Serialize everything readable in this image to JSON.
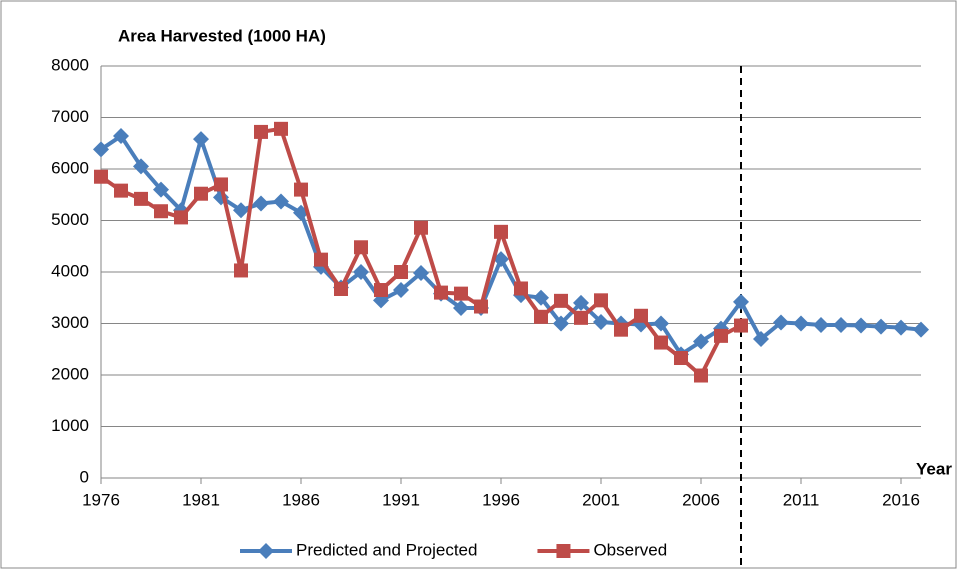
{
  "chart_data": {
    "type": "line",
    "title": "Area Harvested (1000 HA)",
    "x_label": "Year",
    "x": [
      1976,
      1977,
      1978,
      1979,
      1980,
      1981,
      1982,
      1983,
      1984,
      1985,
      1986,
      1987,
      1988,
      1989,
      1990,
      1991,
      1992,
      1993,
      1994,
      1995,
      1996,
      1997,
      1998,
      1999,
      2000,
      2001,
      2002,
      2003,
      2004,
      2005,
      2006,
      2007,
      2008,
      2009,
      2010,
      2011,
      2012,
      2013,
      2014,
      2015,
      2016,
      2017
    ],
    "series": [
      {
        "name": "Predicted and Projected",
        "color": "#4a7ebb",
        "marker": "diamond",
        "values": [
          6380,
          6640,
          6050,
          5600,
          5200,
          6580,
          5450,
          5200,
          5330,
          5370,
          5150,
          4100,
          3700,
          4000,
          3450,
          3650,
          3980,
          3580,
          3300,
          3300,
          4250,
          3550,
          3500,
          3000,
          3400,
          3030,
          3000,
          2980,
          3000,
          2400,
          2650,
          2900,
          3420,
          2700,
          3020,
          3000,
          2970,
          2970,
          2960,
          2940,
          2920,
          2880
        ]
      },
      {
        "name": "Observed",
        "color": "#be4b48",
        "marker": "square",
        "values": [
          5850,
          5580,
          5420,
          5180,
          5060,
          5520,
          5700,
          4030,
          6720,
          6780,
          5600,
          4240,
          3670,
          4480,
          3650,
          4000,
          4860,
          3600,
          3580,
          3330,
          4780,
          3680,
          3130,
          3440,
          3110,
          3450,
          2880,
          3150,
          2630,
          2330,
          1990,
          2760,
          2960,
          null,
          null,
          null,
          null,
          null,
          null,
          null,
          null,
          null
        ]
      }
    ],
    "xlim": [
      1976,
      2017
    ],
    "xticks": [
      1976,
      1981,
      1986,
      1991,
      1996,
      2001,
      2006,
      2011,
      2016
    ],
    "ylim": [
      0,
      8000
    ],
    "yticks": [
      0,
      1000,
      2000,
      3000,
      4000,
      5000,
      6000,
      7000,
      8000
    ],
    "grid": true,
    "vline_x": 2008,
    "legend": "bottom"
  }
}
